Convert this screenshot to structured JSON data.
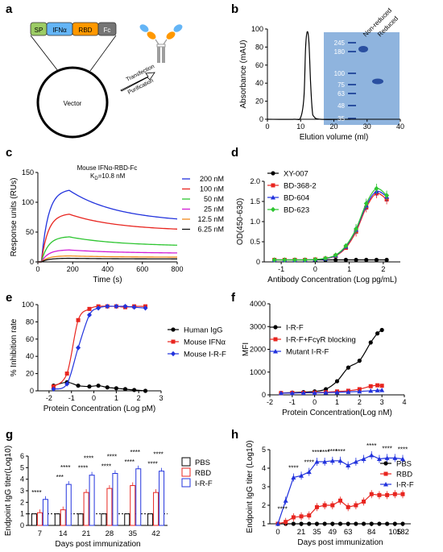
{
  "panel_labels": [
    "a",
    "b",
    "c",
    "d",
    "e",
    "f",
    "g",
    "h"
  ],
  "colors": {
    "black": "#000000",
    "red": "#e8251f",
    "blue": "#2233dd",
    "green": "#2ec531",
    "magenta": "#d21bd6",
    "orange": "#f08a1c",
    "purple": "#7f3fbf",
    "sp": "#9ccc65",
    "ifn": "#64b5f6",
    "rbd": "#ff9800",
    "fc": "#757575",
    "gel_bg": "#8fb4de",
    "gel_band": "#2a4fa0"
  },
  "panel_a": {
    "construct": [
      "SP",
      "IFNα",
      "RBD",
      "Fc"
    ],
    "vector_label": "Vector",
    "arrow_top": "Transfection",
    "arrow_bottom": "Purification"
  },
  "chart_data": [
    {
      "panel": "b",
      "type": "line",
      "xlabel": "Elution volume (ml)",
      "ylabel": "Absorbance (mAU)",
      "xlim": [
        0,
        40
      ],
      "ylim": [
        0,
        100
      ],
      "xticks": [
        0,
        10,
        20,
        30,
        40
      ],
      "yticks": [
        0,
        20,
        40,
        60,
        80,
        100
      ],
      "x": [
        0,
        8,
        10,
        11,
        11.5,
        12,
        12.5,
        13,
        13.5,
        14,
        16,
        25
      ],
      "y": [
        0,
        0,
        2,
        25,
        80,
        97,
        85,
        40,
        10,
        3,
        0,
        0
      ],
      "gel": {
        "ladder_labels": [
          "245",
          "180",
          "100",
          "75",
          "63",
          "48",
          "35"
        ],
        "lane_labels": [
          "Non-reduced",
          "Reduced"
        ]
      }
    },
    {
      "panel": "c",
      "type": "line",
      "title": "Mouse IFNα-RBD-Fc",
      "kd_text": "K",
      "kd_sub": "D",
      "kd_value": "=10.8 nM",
      "xlabel": "Time (s)",
      "ylabel": "Response units (RUs)",
      "xlim": [
        0,
        800
      ],
      "ylim": [
        0,
        150
      ],
      "xticks": [
        0,
        200,
        400,
        600,
        800
      ],
      "yticks": [
        0,
        50,
        100,
        150
      ],
      "series": [
        {
          "name": "200 nM",
          "color": "#2233dd",
          "plateau": 120,
          "end": 72
        },
        {
          "name": "100 nM",
          "color": "#e8251f",
          "plateau": 80,
          "end": 55
        },
        {
          "name": "50 nM",
          "color": "#2ec531",
          "plateau": 42,
          "end": 28
        },
        {
          "name": "25 nM",
          "color": "#d21bd6",
          "plateau": 20,
          "end": 15
        },
        {
          "name": "12.5 nM",
          "color": "#f08a1c",
          "plateau": 10,
          "end": 8
        },
        {
          "name": "6.25 nM",
          "color": "#111111",
          "plateau": 6,
          "end": 5
        }
      ]
    },
    {
      "panel": "d",
      "type": "line",
      "xlabel": "Antibody Concentration (Log pg/mL)",
      "ylabel": "OD(450-630)",
      "xlim": [
        -1.5,
        2.5
      ],
      "ylim": [
        0,
        2.0
      ],
      "xticks": [
        -1,
        0,
        1,
        2
      ],
      "yticks": [
        0,
        0.5,
        1.0,
        1.5,
        2.0
      ],
      "x": [
        -1.2,
        -0.9,
        -0.6,
        -0.3,
        0,
        0.3,
        0.6,
        0.9,
        1.2,
        1.5,
        1.8,
        2.1
      ],
      "series": [
        {
          "name": "XY-007",
          "color": "#000000",
          "marker": "circle",
          "values": [
            0.05,
            0.05,
            0.05,
            0.05,
            0.05,
            0.05,
            0.05,
            0.05,
            0.05,
            0.05,
            0.05,
            0.05
          ]
        },
        {
          "name": "BD-368-2",
          "color": "#e8251f",
          "marker": "square",
          "values": [
            0.05,
            0.05,
            0.05,
            0.05,
            0.06,
            0.08,
            0.15,
            0.35,
            0.75,
            1.35,
            1.7,
            1.55
          ]
        },
        {
          "name": "BD-604",
          "color": "#2233dd",
          "marker": "triangle",
          "values": [
            0.05,
            0.05,
            0.05,
            0.05,
            0.06,
            0.08,
            0.16,
            0.38,
            0.8,
            1.4,
            1.75,
            1.62
          ]
        },
        {
          "name": "BD-623",
          "color": "#2ec531",
          "marker": "diamond",
          "values": [
            0.05,
            0.05,
            0.05,
            0.05,
            0.06,
            0.09,
            0.17,
            0.4,
            0.82,
            1.45,
            1.82,
            1.65
          ]
        }
      ]
    },
    {
      "panel": "e",
      "type": "line",
      "xlabel": "Protein Concentration (Log pM)",
      "ylabel": "% Inhibition rate",
      "xlim": [
        -2.5,
        3
      ],
      "ylim": [
        0,
        100
      ],
      "xticks": [
        -2,
        -1,
        0,
        1,
        2,
        3
      ],
      "yticks": [
        0,
        20,
        40,
        60,
        80,
        100
      ],
      "x": [
        -1.8,
        -1.2,
        -0.7,
        -0.2,
        0.2,
        0.6,
        1.0,
        1.4,
        1.8,
        2.3
      ],
      "series": [
        {
          "name": "Human IgG",
          "color": "#000000",
          "marker": "circle",
          "values": [
            6,
            10,
            6,
            5,
            6,
            4,
            3,
            2,
            1,
            0
          ]
        },
        {
          "name": "Mouse IFNα",
          "color": "#e8251f",
          "marker": "square",
          "values": [
            5,
            20,
            82,
            95,
            98,
            98,
            98,
            97,
            98,
            98
          ]
        },
        {
          "name": "Mouse I-R-F",
          "color": "#2233dd",
          "marker": "diamond",
          "values": [
            2,
            8,
            50,
            88,
            96,
            98,
            98,
            98,
            97,
            96
          ]
        }
      ]
    },
    {
      "panel": "f",
      "type": "line",
      "xlabel": "Protein Concentration(Log nM)",
      "ylabel": "MFI",
      "xlim": [
        -2,
        4
      ],
      "ylim": [
        0,
        4000
      ],
      "xticks": [
        -2,
        -1,
        0,
        1,
        2,
        3,
        4
      ],
      "yticks": [
        0,
        1000,
        2000,
        3000,
        4000
      ],
      "x": [
        -1.5,
        -1.0,
        -0.5,
        0,
        0.5,
        1.0,
        1.5,
        2.0,
        2.5,
        2.8,
        3.0
      ],
      "series": [
        {
          "name": "I-R-F",
          "color": "#000000",
          "marker": "circle",
          "values": [
            80,
            100,
            120,
            150,
            250,
            600,
            1200,
            1500,
            2300,
            2700,
            2850
          ]
        },
        {
          "name": "I-R-F+FcγR blocking",
          "color": "#e8251f",
          "marker": "square",
          "values": [
            80,
            90,
            90,
            100,
            120,
            150,
            180,
            250,
            380,
            420,
            400
          ]
        },
        {
          "name": "Mutant I-R-F",
          "color": "#2233dd",
          "marker": "triangle",
          "values": [
            80,
            80,
            90,
            90,
            100,
            110,
            130,
            150,
            180,
            200,
            210
          ]
        }
      ]
    },
    {
      "panel": "g",
      "type": "bar",
      "xlabel": "Days post immunization",
      "ylabel": "Endpoint IgG titer(Log10)",
      "ylim": [
        0,
        6
      ],
      "yticks": [
        0,
        1,
        2,
        3,
        4,
        5,
        6
      ],
      "categories": [
        "7",
        "14",
        "21",
        "28",
        "35",
        "42"
      ],
      "series": [
        {
          "name": "PBS",
          "color": "#000000",
          "values": [
            1,
            1,
            1,
            1,
            1,
            1
          ]
        },
        {
          "name": "RBD",
          "color": "#e8251f",
          "values": [
            1.1,
            1.35,
            2.85,
            3.2,
            3.45,
            2.85
          ]
        },
        {
          "name": "I-R-F",
          "color": "#2233dd",
          "values": [
            2.25,
            3.55,
            4.35,
            4.5,
            4.9,
            4.7
          ]
        }
      ],
      "sig": [
        {
          "text": "****",
          "group": 0
        },
        {
          "text": "***",
          "group": 1
        },
        {
          "text": "****",
          "group": 1
        },
        {
          "text": "****",
          "group": 2
        },
        {
          "text": "****",
          "group": 2
        },
        {
          "text": "****",
          "group": 3
        },
        {
          "text": "****",
          "group": 3
        },
        {
          "text": "****",
          "group": 4
        },
        {
          "text": "****",
          "group": 4
        },
        {
          "text": "****",
          "group": 5
        },
        {
          "text": "****",
          "group": 5
        }
      ]
    },
    {
      "panel": "h",
      "type": "line",
      "xlabel": "Days post immunization",
      "ylabel": "Endpoint IgG titer (Log10)",
      "ylim": [
        1,
        5
      ],
      "yticks": [
        1,
        2,
        3,
        4,
        5
      ],
      "xtick_labels": [
        "0",
        "21",
        "35",
        "49",
        "63",
        "84",
        "105",
        "182"
      ],
      "x": [
        0,
        7,
        14,
        21,
        28,
        35,
        42,
        49,
        56,
        63,
        70,
        77,
        84,
        91,
        98,
        105,
        182
      ],
      "series": [
        {
          "name": "PBS",
          "color": "#000000",
          "marker": "circle",
          "values": [
            1,
            1,
            1,
            1,
            1,
            1,
            1,
            1,
            1,
            1,
            1,
            1,
            1,
            1,
            1,
            1,
            1
          ]
        },
        {
          "name": "RBD",
          "color": "#e8251f",
          "marker": "square",
          "values": [
            1,
            1.1,
            1.35,
            1.4,
            1.45,
            1.9,
            2.0,
            2.0,
            2.25,
            1.9,
            2.0,
            2.2,
            2.6,
            2.55,
            2.55,
            2.6,
            2.6
          ]
        },
        {
          "name": "I-R-F",
          "color": "#2233dd",
          "marker": "triangle",
          "values": [
            1,
            2.25,
            3.5,
            3.6,
            3.8,
            4.35,
            4.35,
            4.4,
            4.4,
            4.15,
            4.35,
            4.5,
            4.7,
            4.5,
            4.55,
            4.55,
            4.5
          ]
        }
      ],
      "sig": [
        "****",
        "****",
        "****",
        "****",
        "****",
        "****",
        "****",
        "****",
        "****",
        "****"
      ]
    }
  ]
}
